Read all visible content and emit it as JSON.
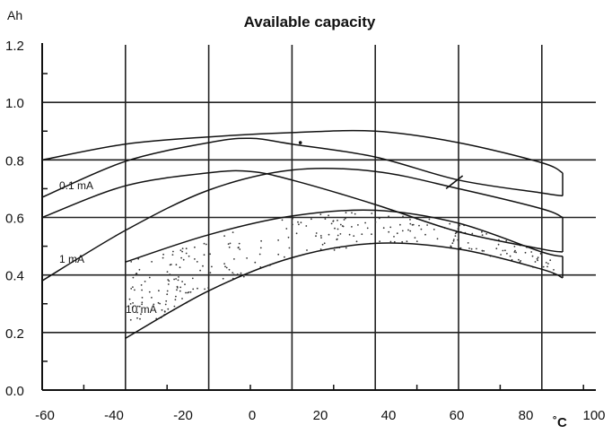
{
  "chart_data": {
    "type": "line",
    "title": "Available capacity",
    "ylabel": "Ah",
    "xlabel": "˚C",
    "xlim": [
      -60,
      100
    ],
    "ylim": [
      0.0,
      1.2
    ],
    "grid": true,
    "x_ticks": [
      "-60",
      "-40",
      "-20",
      "0",
      "20",
      "40",
      "60",
      "80",
      "100"
    ],
    "y_ticks": [
      "0.0",
      "0.2",
      "0.4",
      "0.6",
      "0.8",
      "1.0",
      "1.2"
    ],
    "annotations": [
      {
        "text": "0.1 mA",
        "x": -50,
        "y": 0.72
      },
      {
        "text": "1 mA",
        "x": -50,
        "y": 0.46
      },
      {
        "text": "10 mA",
        "x": -39,
        "y": 0.285
      }
    ],
    "series": [
      {
        "band": "0.1 mA",
        "edge": "upper",
        "points": [
          [
            -40,
            0.8
          ],
          [
            -20,
            0.855
          ],
          [
            0,
            0.88
          ],
          [
            20,
            0.895
          ],
          [
            40,
            0.9
          ],
          [
            60,
            0.86
          ],
          [
            80,
            0.79
          ],
          [
            85,
            0.755
          ]
        ]
      },
      {
        "band": "0.1 mA",
        "edge": "lower",
        "points": [
          [
            -40,
            0.67
          ],
          [
            -20,
            0.795
          ],
          [
            0,
            0.86
          ],
          [
            10,
            0.875
          ],
          [
            20,
            0.855
          ],
          [
            40,
            0.81
          ],
          [
            60,
            0.73
          ],
          [
            80,
            0.685
          ],
          [
            85,
            0.675
          ]
        ]
      },
      {
        "band": "1 mA",
        "edge": "upper",
        "points": [
          [
            -40,
            0.6
          ],
          [
            -20,
            0.71
          ],
          [
            0,
            0.755
          ],
          [
            10,
            0.76
          ],
          [
            20,
            0.73
          ],
          [
            40,
            0.645
          ],
          [
            60,
            0.55
          ],
          [
            80,
            0.49
          ],
          [
            85,
            0.48
          ]
        ]
      },
      {
        "band": "1 mA",
        "edge": "lower",
        "points": [
          [
            -40,
            0.38
          ],
          [
            -20,
            0.555
          ],
          [
            0,
            0.695
          ],
          [
            20,
            0.765
          ],
          [
            40,
            0.76
          ],
          [
            60,
            0.7
          ],
          [
            80,
            0.63
          ],
          [
            85,
            0.6
          ]
        ]
      },
      {
        "band": "10 mA",
        "edge": "upper",
        "points": [
          [
            -20,
            0.445
          ],
          [
            0,
            0.54
          ],
          [
            20,
            0.605
          ],
          [
            40,
            0.625
          ],
          [
            60,
            0.58
          ],
          [
            80,
            0.48
          ],
          [
            85,
            0.465
          ]
        ]
      },
      {
        "band": "10 mA",
        "edge": "lower",
        "points": [
          [
            -20,
            0.18
          ],
          [
            0,
            0.345
          ],
          [
            20,
            0.46
          ],
          [
            40,
            0.51
          ],
          [
            60,
            0.49
          ],
          [
            80,
            0.42
          ],
          [
            85,
            0.39
          ]
        ]
      }
    ]
  }
}
